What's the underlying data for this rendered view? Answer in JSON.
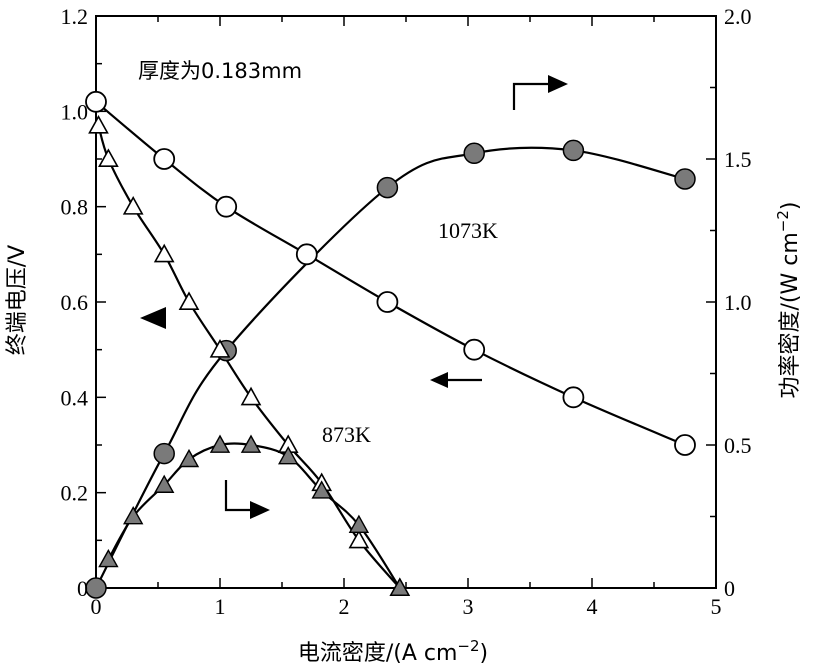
{
  "chart_data": {
    "type": "line",
    "xlabel": "电流密度/(A cm",
    "xlabel_sup": "−2",
    "xlabel_tail": ")",
    "ylabel_left": "终端电压/V",
    "ylabel_right": "功率密度/(W cm",
    "ylabel_right_sup": "−2",
    "ylabel_right_tail": ")",
    "xlim": [
      0,
      5
    ],
    "ylim_left": [
      0,
      1.2
    ],
    "ylim_right": [
      0,
      2.0
    ],
    "x_ticks": [
      "0",
      "1",
      "2",
      "3",
      "4",
      "5"
    ],
    "y_left_ticks": [
      "0",
      "0.2",
      "0.4",
      "0.6",
      "0.8",
      "1.0",
      "1.2"
    ],
    "y_right_ticks": [
      "0",
      "0.5",
      "1.0",
      "1.5",
      "2.0"
    ],
    "grid": false,
    "annotations": {
      "thickness": "厚度为0.183mm",
      "temp_high": "1073K",
      "temp_low": "873K"
    },
    "series": [
      {
        "marker": "open-circle",
        "axis": "left",
        "x": [
          0,
          0.55,
          1.05,
          1.7,
          2.35,
          3.05,
          3.85,
          4.75
        ],
        "y": [
          1.02,
          0.9,
          0.8,
          0.7,
          0.6,
          0.5,
          0.4,
          0.3
        ]
      },
      {
        "marker": "filled-circle",
        "axis": "right",
        "x": [
          0,
          0.55,
          1.05,
          2.35,
          3.05,
          3.85,
          4.75
        ],
        "y": [
          0,
          0.47,
          0.83,
          1.4,
          1.52,
          1.53,
          1.43
        ]
      },
      {
        "marker": "open-triangle",
        "axis": "left",
        "x": [
          0.02,
          0.1,
          0.3,
          0.55,
          0.75,
          1.0,
          1.25,
          1.55,
          1.82,
          2.12,
          2.45
        ],
        "y": [
          0.97,
          0.9,
          0.8,
          0.7,
          0.6,
          0.5,
          0.4,
          0.3,
          0.22,
          0.1,
          0.0
        ]
      },
      {
        "marker": "filled-triangle",
        "axis": "right",
        "x": [
          0.1,
          0.3,
          0.55,
          0.75,
          1.0,
          1.25,
          1.55,
          1.82,
          2.12,
          2.45
        ],
        "y": [
          0.1,
          0.25,
          0.36,
          0.45,
          0.5,
          0.5,
          0.46,
          0.34,
          0.22,
          0.0
        ]
      }
    ]
  },
  "colors": {
    "filled_marker": "#7a7a7a",
    "open_marker": "#ffffff",
    "ink": "#000000"
  }
}
